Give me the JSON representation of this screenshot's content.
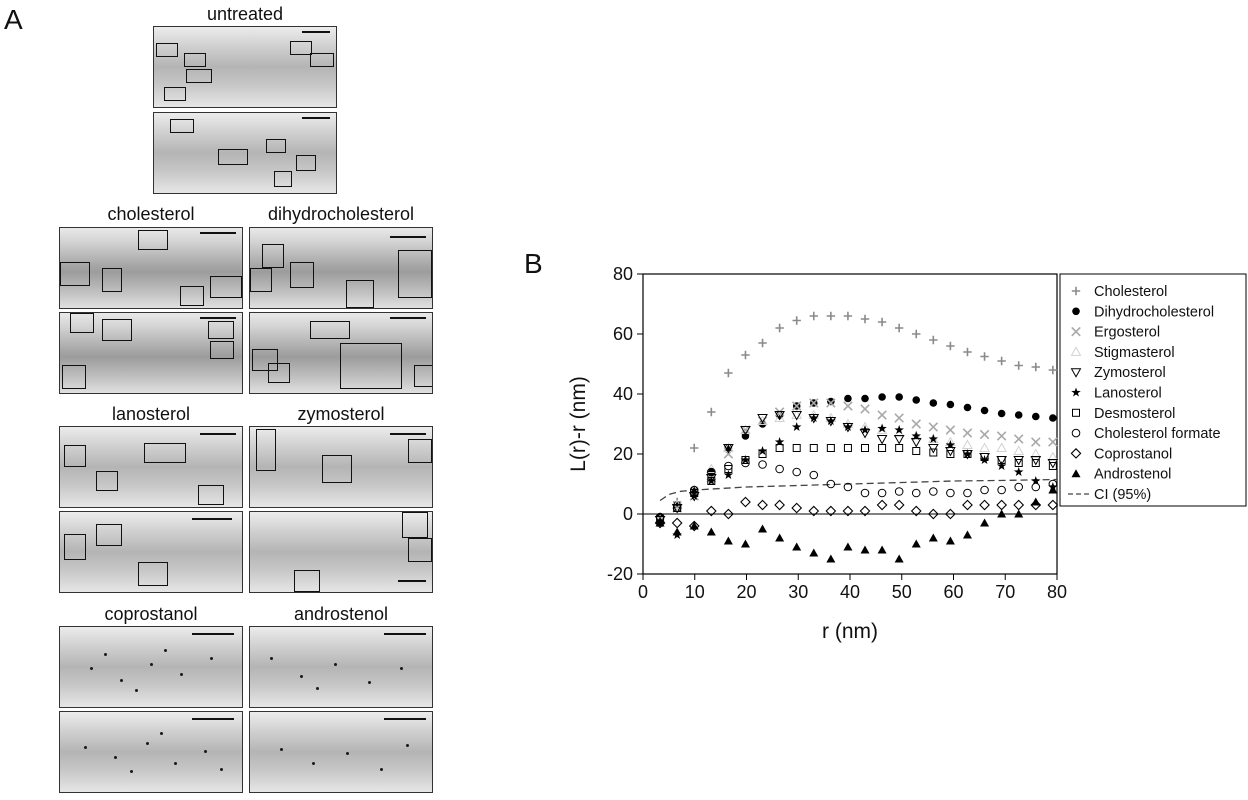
{
  "panel_a": {
    "letter": "A",
    "labels": [
      "untreated",
      "cholesterol",
      "dihydrocholesterol",
      "lanosterol",
      "zymosterol",
      "coprostanol",
      "androstenol"
    ]
  },
  "chart_data": {
    "panel_letter": "B",
    "type": "scatter",
    "xlabel": "r (nm)",
    "ylabel": "L(r)-r (nm)",
    "xlim": [
      0,
      80
    ],
    "ylim": [
      -20,
      80
    ],
    "xticks": [
      0,
      10,
      20,
      30,
      40,
      50,
      60,
      70,
      80
    ],
    "yticks": [
      -20,
      0,
      20,
      40,
      60,
      80
    ],
    "legend_position": "right",
    "x": [
      3.3,
      6.6,
      9.9,
      13.2,
      16.5,
      19.8,
      23.1,
      26.4,
      29.7,
      33,
      36.3,
      39.6,
      42.9,
      46.2,
      49.5,
      52.8,
      56.1,
      59.4,
      62.7,
      66,
      69.3,
      72.6,
      75.9,
      79.2
    ],
    "series": [
      {
        "name": "Cholesterol",
        "marker": "plus",
        "color": "#8a8a8a",
        "values": [
          -1,
          4,
          22,
          34,
          47,
          53,
          57,
          62,
          64.5,
          66,
          66,
          66,
          65,
          64,
          62,
          60,
          58,
          56,
          54,
          52.5,
          51,
          49.5,
          49,
          48
        ]
      },
      {
        "name": "Dihydrocholesterol",
        "marker": "circle-filled",
        "color": "#000000",
        "values": [
          -1,
          3,
          8,
          14,
          22,
          26,
          30,
          33,
          36,
          37,
          37.5,
          38.5,
          38.5,
          39,
          39,
          38,
          37,
          36.5,
          35.5,
          34.5,
          33.5,
          33,
          32.5,
          32
        ]
      },
      {
        "name": "Ergosterol",
        "marker": "x",
        "color": "#a8a8a8",
        "values": [
          -2,
          2,
          6,
          12,
          20,
          28,
          31,
          34,
          36,
          37,
          37,
          36,
          35,
          33,
          32,
          30,
          29,
          28,
          27,
          26.5,
          26,
          25,
          24,
          24
        ]
      },
      {
        "name": "Stigmasterol",
        "marker": "triangle-up-open",
        "color": "#d2d2d2",
        "values": [
          -2,
          3,
          8,
          15,
          22,
          28,
          31,
          32,
          33,
          33,
          32,
          30,
          29,
          28,
          27,
          26,
          25,
          24,
          23,
          22,
          22,
          21,
          20,
          19
        ]
      },
      {
        "name": "Zymosterol",
        "marker": "triangle-down-open",
        "color": "#000000",
        "values": [
          -2,
          2,
          6,
          12,
          22,
          28,
          32,
          33,
          33,
          32,
          31,
          29,
          27,
          25,
          25,
          24,
          22,
          21,
          20,
          19,
          18,
          18,
          18,
          17
        ]
      },
      {
        "name": "Lanosterol",
        "marker": "star",
        "color": "#000000",
        "values": [
          -3,
          -7,
          6,
          11,
          13,
          18,
          21,
          24,
          29,
          32,
          31,
          29,
          28,
          28.5,
          28,
          26,
          25,
          23,
          20,
          18,
          16,
          14,
          11,
          9
        ]
      },
      {
        "name": "Desmosterol",
        "marker": "square-open",
        "color": "#000000",
        "values": [
          -2,
          2,
          7,
          11,
          15,
          18,
          20,
          22,
          22,
          22,
          22,
          22,
          22,
          22,
          22,
          21,
          20.5,
          20,
          20,
          19,
          18,
          17,
          17,
          16
        ]
      },
      {
        "name": "Cholesterol formate",
        "marker": "circle-open",
        "color": "#000000",
        "values": [
          -1,
          2,
          8,
          14,
          16,
          17,
          16.5,
          15,
          14,
          13,
          10,
          9,
          7,
          7,
          7.5,
          7,
          7.5,
          7,
          7,
          8,
          8,
          9,
          9,
          10
        ]
      },
      {
        "name": "Coprostanol",
        "marker": "diamond-open",
        "color": "#000000",
        "values": [
          -3,
          -3,
          -4,
          1,
          0,
          4,
          3,
          3,
          2,
          1,
          1,
          1,
          1,
          3,
          3,
          1,
          0,
          0,
          3,
          3,
          3,
          3,
          3,
          3
        ]
      },
      {
        "name": "Androstenol",
        "marker": "triangle-up-filled",
        "color": "#000000",
        "values": [
          -3,
          -6,
          -4,
          -6,
          -9,
          -10,
          -5,
          -8,
          -11,
          -13,
          -15,
          -11,
          -12,
          -12,
          -15,
          -10,
          -8,
          -9,
          -7,
          -3,
          0,
          0,
          4,
          8
        ]
      }
    ],
    "ci": {
      "name": "CI (95%)",
      "x": [
        3.3,
        5,
        7,
        10,
        15,
        20,
        30,
        40,
        50,
        60,
        70,
        80
      ],
      "values": [
        4.5,
        6.5,
        7.5,
        8,
        8.5,
        9,
        9.5,
        10,
        10.5,
        11,
        11.2,
        11.5
      ]
    }
  }
}
